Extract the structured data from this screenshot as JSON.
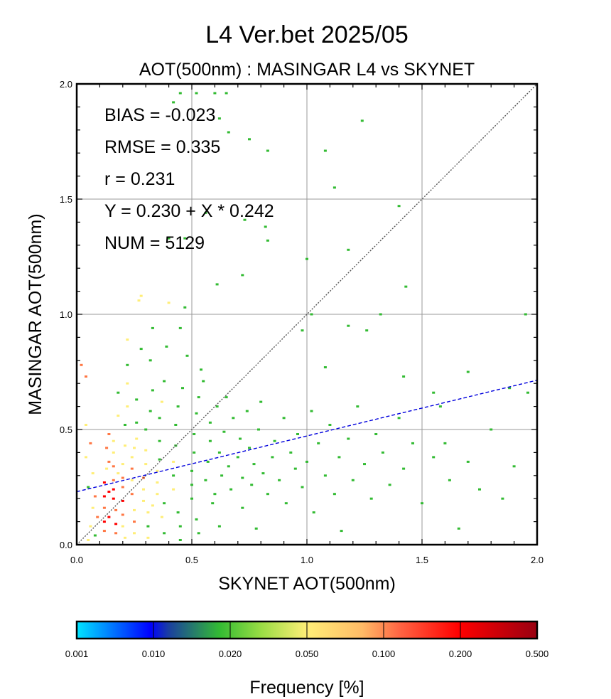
{
  "title": "L4  Ver.bet  2025/05",
  "subtitle": "AOT(500nm) : MASINGAR L4 vs SKYNET",
  "chart_data": {
    "type": "heatmap",
    "xlabel": "SKYNET AOT(500nm)",
    "ylabel": "MASINGAR AOT(500nm)",
    "xlim": [
      0,
      2
    ],
    "ylim": [
      0,
      2
    ],
    "x_ticks": [
      "0.0",
      "0.5",
      "1.0",
      "1.5",
      "2.0"
    ],
    "y_ticks": [
      "0.0",
      "0.5",
      "1.0",
      "1.5",
      "2.0"
    ],
    "grid": true,
    "one_to_one_line": true,
    "stats": [
      "BIAS = -0.023",
      "RMSE = 0.335",
      "r = 0.231",
      "Y = 0.230 + X * 0.242",
      "NUM = 5129"
    ],
    "regression": {
      "intercept": 0.23,
      "slope": 0.242,
      "color": "#0000dd"
    },
    "colorbar": {
      "label": "Frequency [%]",
      "ticks": [
        "0.001",
        "0.010",
        "0.020",
        "0.050",
        "0.100",
        "0.200",
        "0.500"
      ],
      "colors": [
        "#00ddff",
        "#0000ff",
        "#33bb33",
        "#ffee77",
        "#ff7744",
        "#ff0000",
        "#990000"
      ]
    },
    "cells": [
      [
        0.02,
        0.78,
        4
      ],
      [
        0.04,
        0.73,
        4
      ],
      [
        0.04,
        0.52,
        3
      ],
      [
        0.06,
        0.44,
        4
      ],
      [
        0.04,
        0.38,
        3
      ],
      [
        0.07,
        0.31,
        3
      ],
      [
        0.05,
        0.25,
        2
      ],
      [
        0.08,
        0.21,
        4
      ],
      [
        0.07,
        0.16,
        3
      ],
      [
        0.09,
        0.12,
        4
      ],
      [
        0.06,
        0.08,
        3
      ],
      [
        0.08,
        0.04,
        2
      ],
      [
        0.05,
        0.02,
        3
      ],
      [
        0.12,
        0.27,
        5
      ],
      [
        0.12,
        0.21,
        5
      ],
      [
        0.12,
        0.16,
        4
      ],
      [
        0.12,
        0.1,
        5
      ],
      [
        0.12,
        0.06,
        4
      ],
      [
        0.13,
        0.33,
        3
      ],
      [
        0.13,
        0.42,
        4
      ],
      [
        0.14,
        0.48,
        4
      ],
      [
        0.14,
        0.12,
        5
      ],
      [
        0.14,
        0.23,
        5
      ],
      [
        0.16,
        0.2,
        5
      ],
      [
        0.16,
        0.24,
        5
      ],
      [
        0.16,
        0.28,
        4
      ],
      [
        0.16,
        0.34,
        4
      ],
      [
        0.16,
        0.4,
        3
      ],
      [
        0.16,
        0.45,
        3
      ],
      [
        0.17,
        0.09,
        5
      ],
      [
        0.17,
        0.05,
        4
      ],
      [
        0.17,
        0.15,
        4
      ],
      [
        0.18,
        0.31,
        3
      ],
      [
        0.18,
        0.56,
        3
      ],
      [
        0.18,
        0.66,
        2
      ],
      [
        0.2,
        0.19,
        5
      ],
      [
        0.2,
        0.25,
        4
      ],
      [
        0.2,
        0.29,
        4
      ],
      [
        0.2,
        0.35,
        3
      ],
      [
        0.2,
        0.13,
        4
      ],
      [
        0.2,
        0.08,
        3
      ],
      [
        0.21,
        0.03,
        3
      ],
      [
        0.21,
        0.43,
        3
      ],
      [
        0.21,
        0.52,
        2
      ],
      [
        0.22,
        0.6,
        3
      ],
      [
        0.22,
        0.7,
        3
      ],
      [
        0.22,
        0.78,
        2
      ],
      [
        0.22,
        0.89,
        3
      ],
      [
        0.24,
        0.22,
        4
      ],
      [
        0.24,
        0.28,
        3
      ],
      [
        0.24,
        0.33,
        4
      ],
      [
        0.24,
        0.38,
        3
      ],
      [
        0.25,
        0.15,
        3
      ],
      [
        0.25,
        0.1,
        4
      ],
      [
        0.25,
        0.05,
        3
      ],
      [
        0.26,
        0.46,
        3
      ],
      [
        0.26,
        0.53,
        2
      ],
      [
        0.26,
        0.63,
        2
      ],
      [
        0.27,
        1.06,
        3
      ],
      [
        0.28,
        1.08,
        3
      ],
      [
        0.28,
        0.85,
        2
      ],
      [
        0.29,
        0.24,
        3
      ],
      [
        0.29,
        0.29,
        4
      ],
      [
        0.29,
        0.19,
        3
      ],
      [
        0.3,
        0.35,
        3
      ],
      [
        0.3,
        0.41,
        3
      ],
      [
        0.3,
        0.5,
        2
      ],
      [
        0.31,
        0.14,
        3
      ],
      [
        0.31,
        0.08,
        2
      ],
      [
        0.31,
        0.03,
        3
      ],
      [
        0.32,
        0.58,
        2
      ],
      [
        0.33,
        0.67,
        2
      ],
      [
        0.32,
        0.8,
        2
      ],
      [
        0.33,
        0.94,
        2
      ],
      [
        0.35,
        0.22,
        3
      ],
      [
        0.35,
        0.27,
        3
      ],
      [
        0.35,
        0.32,
        3
      ],
      [
        0.36,
        0.37,
        2
      ],
      [
        0.36,
        0.45,
        2
      ],
      [
        0.36,
        0.55,
        2
      ],
      [
        0.37,
        0.62,
        3
      ],
      [
        0.37,
        0.12,
        3
      ],
      [
        0.38,
        0.05,
        2
      ],
      [
        0.38,
        0.18,
        2
      ],
      [
        0.38,
        0.71,
        2
      ],
      [
        0.39,
        0.86,
        2
      ],
      [
        0.4,
        1.05,
        3
      ],
      [
        0.42,
        0.24,
        3
      ],
      [
        0.42,
        0.3,
        2
      ],
      [
        0.42,
        0.36,
        3
      ],
      [
        0.43,
        0.43,
        2
      ],
      [
        0.43,
        0.52,
        2
      ],
      [
        0.44,
        0.6,
        2
      ],
      [
        0.44,
        0.14,
        2
      ],
      [
        0.45,
        0.08,
        2
      ],
      [
        0.45,
        0.02,
        2
      ],
      [
        0.46,
        0.68,
        2
      ],
      [
        0.45,
        0.94,
        2
      ],
      [
        0.47,
        1.03,
        2
      ],
      [
        0.48,
        0.82,
        2
      ],
      [
        0.5,
        0.2,
        2
      ],
      [
        0.5,
        0.26,
        2
      ],
      [
        0.5,
        0.32,
        2
      ],
      [
        0.51,
        0.4,
        2
      ],
      [
        0.51,
        0.48,
        2
      ],
      [
        0.52,
        0.57,
        2
      ],
      [
        0.52,
        0.11,
        2
      ],
      [
        0.53,
        0.05,
        2
      ],
      [
        0.53,
        0.64,
        2
      ],
      [
        0.54,
        0.76,
        2
      ],
      [
        0.55,
        0.71,
        2
      ],
      [
        0.56,
        0.28,
        2
      ],
      [
        0.57,
        0.36,
        2
      ],
      [
        0.58,
        0.45,
        2
      ],
      [
        0.58,
        0.53,
        2
      ],
      [
        0.59,
        0.18,
        2
      ],
      [
        0.6,
        0.22,
        2
      ],
      [
        0.61,
        0.6,
        2
      ],
      [
        0.62,
        0.4,
        2
      ],
      [
        0.62,
        0.08,
        2
      ],
      [
        0.63,
        0.3,
        2
      ],
      [
        0.64,
        0.49,
        2
      ],
      [
        0.65,
        0.64,
        2
      ],
      [
        0.66,
        0.34,
        2
      ],
      [
        0.67,
        0.24,
        2
      ],
      [
        0.68,
        0.55,
        2
      ],
      [
        0.7,
        0.38,
        2
      ],
      [
        0.71,
        0.46,
        2
      ],
      [
        0.72,
        0.16,
        2
      ],
      [
        0.72,
        0.29,
        2
      ],
      [
        0.74,
        0.58,
        2
      ],
      [
        0.75,
        0.42,
        2
      ],
      [
        0.76,
        0.26,
        2
      ],
      [
        0.77,
        0.35,
        2
      ],
      [
        0.78,
        0.07,
        2
      ],
      [
        0.79,
        0.5,
        2
      ],
      [
        0.8,
        0.62,
        2
      ],
      [
        0.81,
        0.31,
        2
      ],
      [
        0.83,
        0.22,
        2
      ],
      [
        0.85,
        0.38,
        2
      ],
      [
        0.86,
        0.45,
        2
      ],
      [
        0.88,
        0.28,
        2
      ],
      [
        0.9,
        0.55,
        2
      ],
      [
        0.91,
        0.18,
        2
      ],
      [
        0.93,
        0.4,
        2
      ],
      [
        0.95,
        0.33,
        2
      ],
      [
        0.96,
        0.48,
        2
      ],
      [
        0.98,
        0.25,
        2
      ],
      [
        1.0,
        0.36,
        2
      ],
      [
        1.02,
        0.58,
        2
      ],
      [
        1.03,
        0.14,
        2
      ],
      [
        1.05,
        0.44,
        2
      ],
      [
        1.08,
        0.3,
        2
      ],
      [
        1.1,
        0.52,
        2
      ],
      [
        1.12,
        0.22,
        2
      ],
      [
        1.14,
        0.38,
        2
      ],
      [
        1.15,
        0.06,
        2
      ],
      [
        1.18,
        0.46,
        2
      ],
      [
        1.2,
        0.28,
        2
      ],
      [
        1.22,
        0.6,
        2
      ],
      [
        1.25,
        0.35,
        2
      ],
      [
        1.28,
        0.2,
        2
      ],
      [
        1.3,
        0.48,
        2
      ],
      [
        1.33,
        0.4,
        2
      ],
      [
        1.36,
        0.26,
        2
      ],
      [
        1.4,
        0.55,
        2
      ],
      [
        1.42,
        0.33,
        2
      ],
      [
        1.46,
        0.44,
        2
      ],
      [
        1.5,
        0.18,
        2
      ],
      [
        1.55,
        0.38,
        2
      ],
      [
        1.58,
        0.6,
        2
      ],
      [
        1.62,
        0.28,
        2
      ],
      [
        1.66,
        0.07,
        2
      ],
      [
        1.7,
        0.36,
        2
      ],
      [
        1.75,
        0.24,
        2
      ],
      [
        1.8,
        0.5,
        2
      ],
      [
        1.85,
        0.2,
        2
      ],
      [
        1.9,
        0.34,
        2
      ],
      [
        1.96,
        0.66,
        2
      ],
      [
        0.45,
        1.96,
        2
      ],
      [
        0.52,
        1.96,
        2
      ],
      [
        0.6,
        1.96,
        2
      ],
      [
        0.65,
        1.96,
        2
      ],
      [
        0.42,
        1.92,
        2
      ],
      [
        0.62,
        1.85,
        2
      ],
      [
        0.66,
        1.79,
        2
      ],
      [
        0.75,
        1.76,
        2
      ],
      [
        0.83,
        1.71,
        2
      ],
      [
        1.08,
        1.71,
        2
      ],
      [
        1.24,
        1.84,
        2
      ],
      [
        1.12,
        1.55,
        2
      ],
      [
        1.4,
        1.47,
        2
      ],
      [
        0.4,
        1.33,
        2
      ],
      [
        0.47,
        1.33,
        2
      ],
      [
        0.56,
        1.44,
        2
      ],
      [
        0.73,
        1.41,
        2
      ],
      [
        0.83,
        1.32,
        2
      ],
      [
        0.82,
        1.38,
        2
      ],
      [
        1.0,
        1.24,
        2
      ],
      [
        1.18,
        1.28,
        2
      ],
      [
        1.43,
        1.12,
        2
      ],
      [
        1.32,
        1.0,
        2
      ],
      [
        1.02,
        1.0,
        2
      ],
      [
        0.72,
        1.17,
        2
      ],
      [
        0.61,
        1.13,
        2
      ],
      [
        0.98,
        0.93,
        2
      ],
      [
        1.18,
        0.95,
        2
      ],
      [
        1.26,
        0.93,
        2
      ],
      [
        1.08,
        0.77,
        2
      ],
      [
        1.42,
        0.73,
        2
      ],
      [
        1.7,
        0.75,
        2
      ],
      [
        1.88,
        0.68,
        2
      ],
      [
        1.6,
        0.44,
        2
      ],
      [
        1.95,
        1.0,
        2
      ],
      [
        1.55,
        0.66,
        2
      ],
      [
        0.25,
        0.42,
        3
      ],
      [
        0.33,
        0.17,
        3
      ],
      [
        0.14,
        0.36,
        4
      ]
    ]
  }
}
